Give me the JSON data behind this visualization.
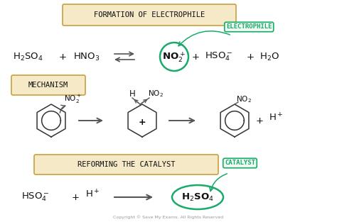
{
  "bg_color": "#ffffff",
  "section1_box_text": "FORMATION OF ELECTROPHILE",
  "section1_box_color": "#f5e9c8",
  "section1_box_border": "#c8a040",
  "section2_box_text": "MECHANISM",
  "section2_box_color": "#f5e9c8",
  "section2_box_border": "#c8a040",
  "section3_box_text": "REFORMING THE CATALYST",
  "section3_box_color": "#f5e9c8",
  "section3_box_border": "#c8a040",
  "electrophile_label": "ELECTROPHILE",
  "catalyst_label": "CATALYST",
  "label_color": "#1aaa6a",
  "label_bg": "#eef8f3",
  "label_border": "#1aaa6a",
  "arrow_color": "#555555",
  "text_color": "#111111",
  "copyright": "Copyright © Save My Exams. All Rights Reserved"
}
